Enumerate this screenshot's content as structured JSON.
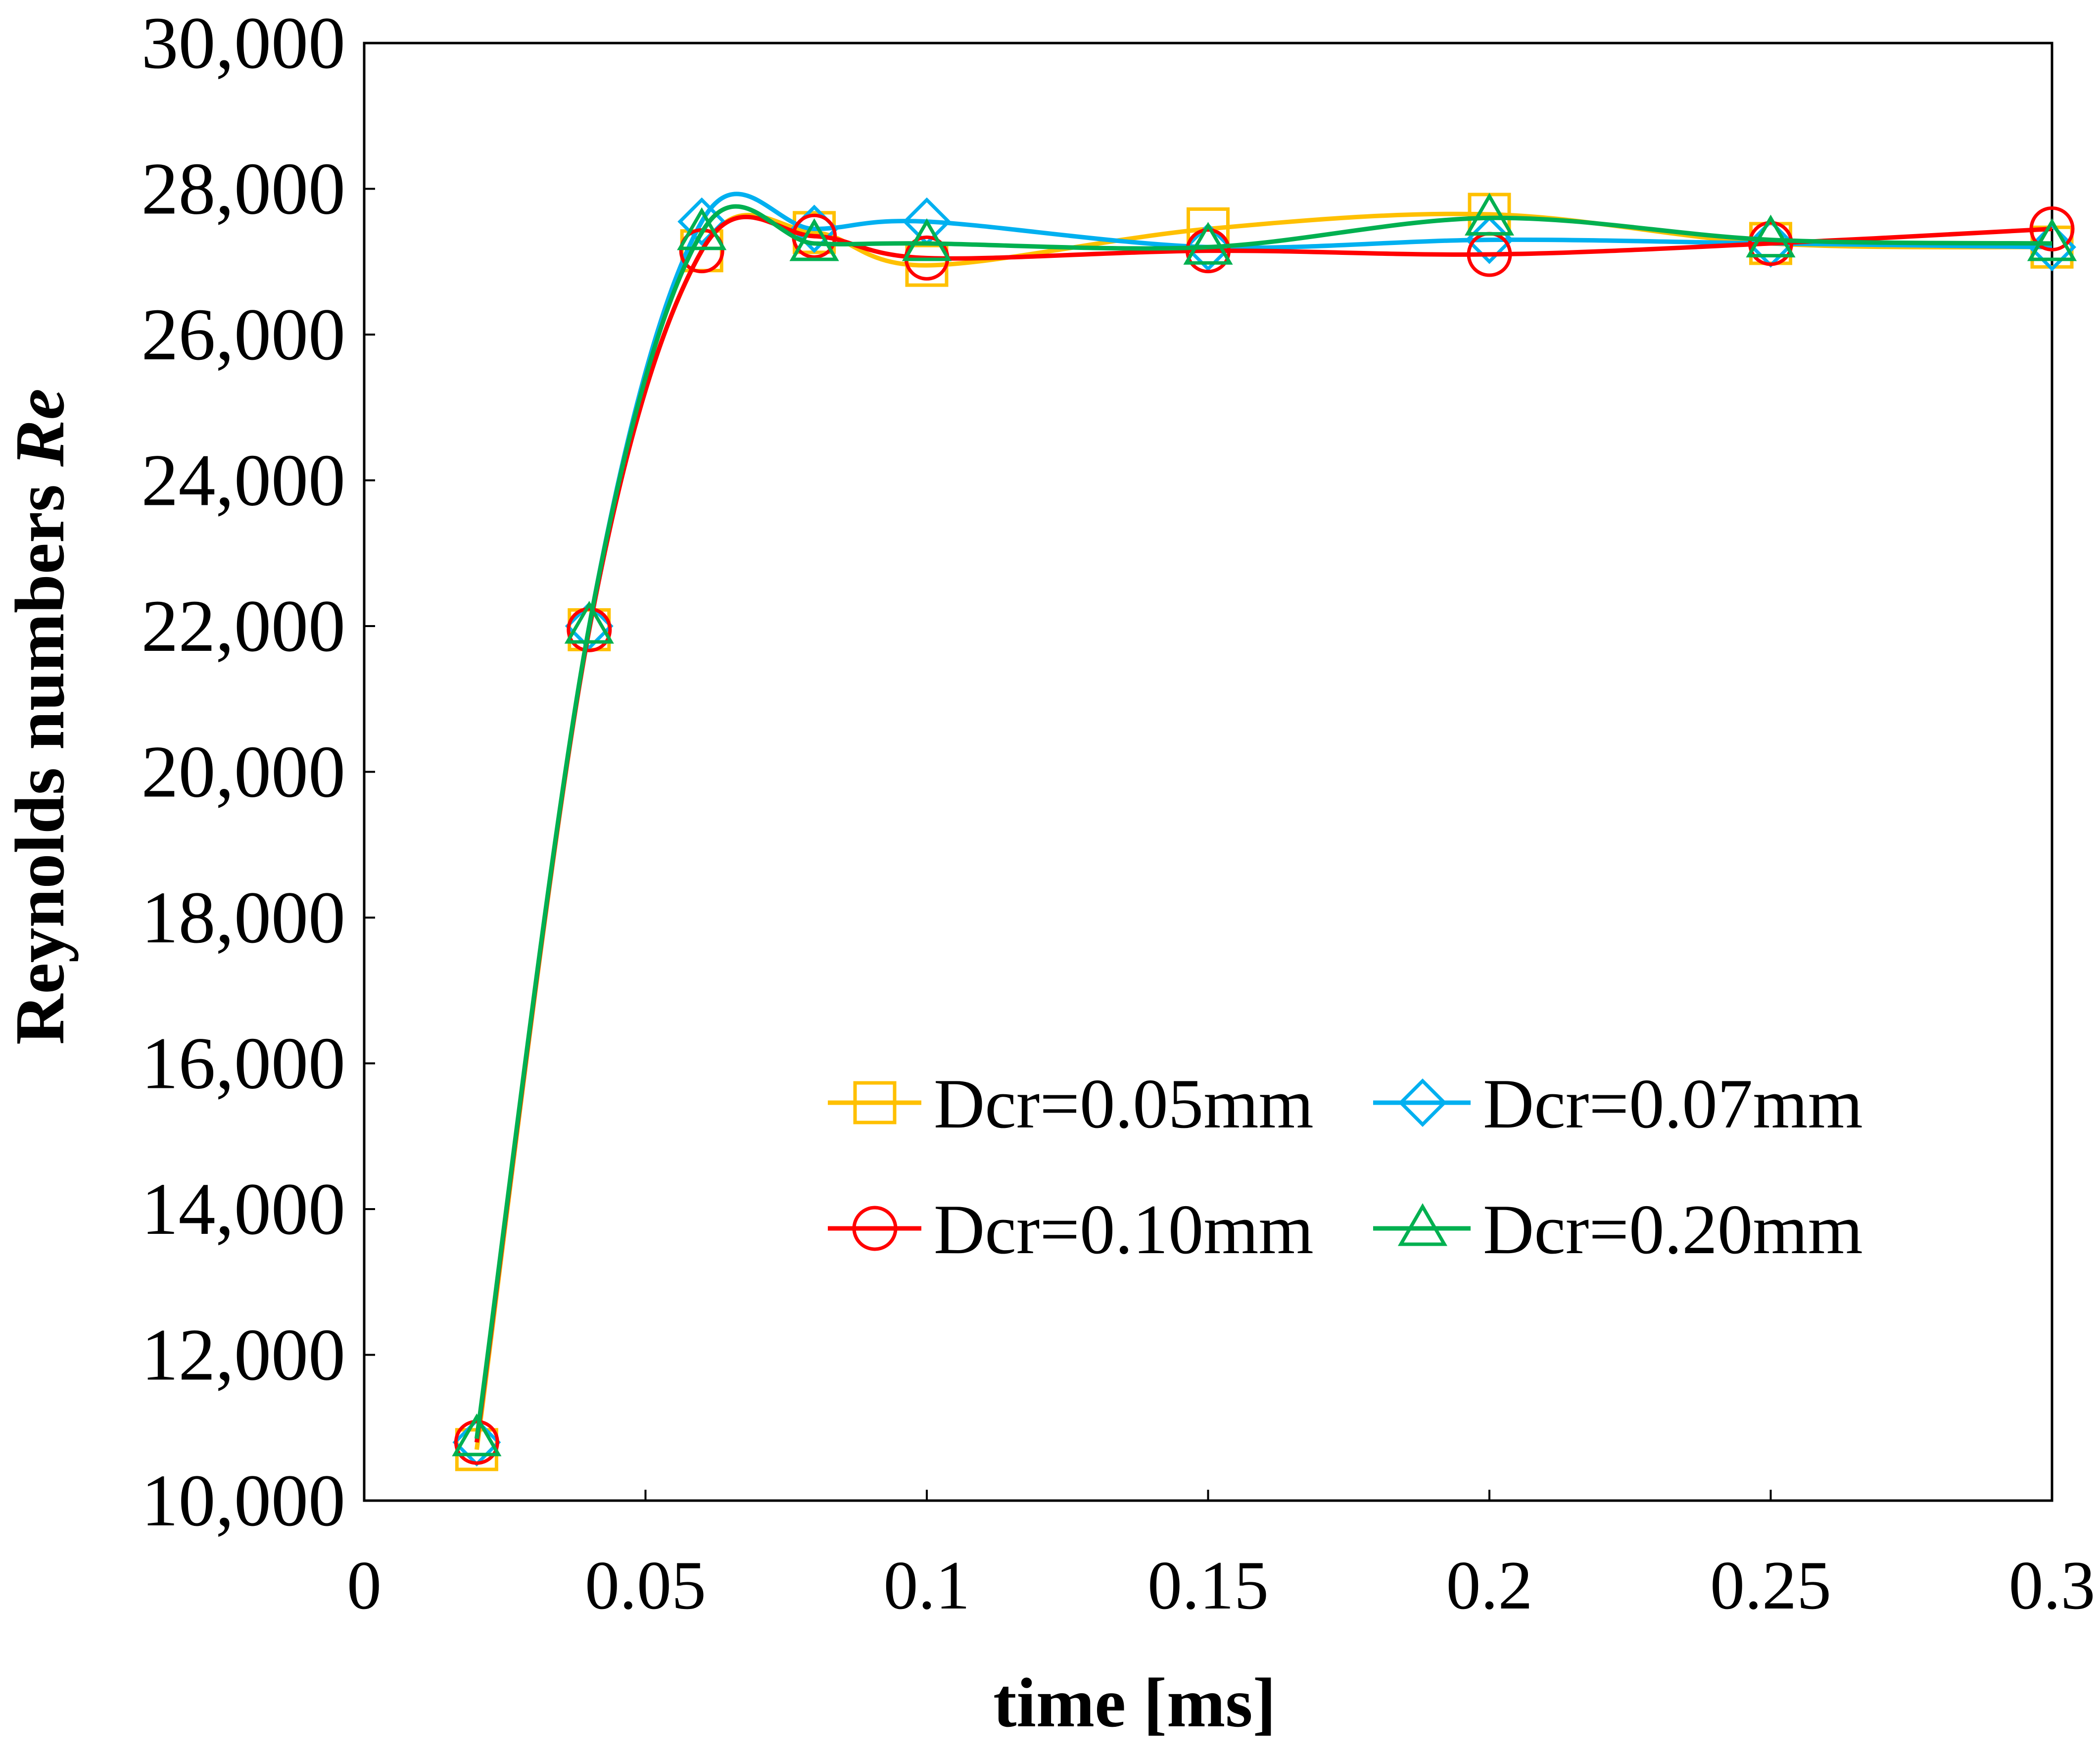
{
  "chart_data": {
    "type": "line",
    "xlabel": "time [ms]",
    "ylabel": "Reynolds numbers",
    "ylabel_symbol": "Re",
    "xlim": [
      0,
      0.3
    ],
    "ylim": [
      10000,
      30000
    ],
    "xticks": [
      0,
      0.05,
      0.1,
      0.15,
      0.2,
      0.25,
      0.3
    ],
    "xtick_labels": [
      "0",
      "0.05",
      "0.1",
      "0.15",
      "0.2",
      "0.25",
      "0.3"
    ],
    "yticks": [
      10000,
      12000,
      14000,
      16000,
      18000,
      20000,
      22000,
      24000,
      26000,
      28000,
      30000
    ],
    "ytick_labels": [
      "10,000",
      "12,000",
      "14,000",
      "16,000",
      "18,000",
      "20,000",
      "22,000",
      "24,000",
      "26,000",
      "28,000",
      "30,000"
    ],
    "grid": false,
    "legend_position": "center-right",
    "x": [
      0.02,
      0.04,
      0.06,
      0.08,
      0.1,
      0.15,
      0.2,
      0.25,
      0.3
    ],
    "series": [
      {
        "name": "Dcr=0.05mm",
        "color": "#FFC000",
        "marker": "square",
        "values": [
          10700,
          21950,
          27150,
          27400,
          26950,
          27450,
          27650,
          27250,
          27200
        ]
      },
      {
        "name": "Dcr=0.07mm",
        "color": "#00B0F0",
        "marker": "diamond",
        "values": [
          10800,
          22000,
          27550,
          27450,
          27550,
          27200,
          27300,
          27250,
          27200
        ]
      },
      {
        "name": "Dcr=0.10mm",
        "color": "#FF0000",
        "marker": "circle",
        "values": [
          10800,
          21950,
          27150,
          27350,
          27050,
          27150,
          27100,
          27250,
          27450
        ]
      },
      {
        "name": "Dcr=0.20mm",
        "color": "#00B050",
        "marker": "triangle",
        "values": [
          10850,
          22000,
          27400,
          27250,
          27250,
          27200,
          27600,
          27300,
          27250
        ]
      }
    ]
  }
}
